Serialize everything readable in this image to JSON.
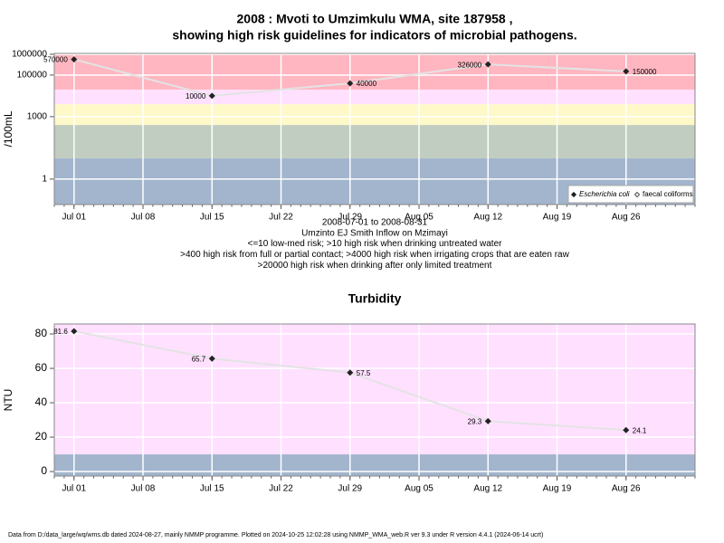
{
  "chart_data": [
    {
      "type": "line",
      "title": [
        "2008 : Mvoti to Umzimkulu WMA, site 187958 ,",
        "showing high risk guidelines for indicators of microbial pathogens."
      ],
      "ylabel": "/100mL",
      "log_y": true,
      "x": [
        "2008-07-01",
        "2008-07-15",
        "2008-07-29",
        "2008-08-12",
        "2008-08-26"
      ],
      "series": [
        {
          "name": "Escherichia coli",
          "color": "#222222",
          "marker": "filled-diamond",
          "values": [
            570000,
            10000,
            40000,
            326000,
            150000
          ]
        },
        {
          "name": "faecal coliforms",
          "color": "#222222",
          "marker": "open-diamond",
          "values": [
            null,
            null,
            null,
            null,
            null
          ]
        }
      ],
      "xlim": [
        "2008-06-29",
        "2008-09-02"
      ],
      "xticks": [
        {
          "value": "2008-07-01",
          "label": "Jul 01"
        },
        {
          "value": "2008-07-08",
          "label": "Jul 08"
        },
        {
          "value": "2008-07-15",
          "label": "Jul 15"
        },
        {
          "value": "2008-07-22",
          "label": "Jul 22"
        },
        {
          "value": "2008-07-29",
          "label": "Jul 29"
        },
        {
          "value": "2008-08-05",
          "label": "Aug 05"
        },
        {
          "value": "2008-08-12",
          "label": "Aug 12"
        },
        {
          "value": "2008-08-19",
          "label": "Aug 19"
        },
        {
          "value": "2008-08-26",
          "label": "Aug 26"
        }
      ],
      "ylim": [
        0.06,
        1100000
      ],
      "yticks": [
        1,
        1000,
        100000,
        1000000
      ],
      "thresholds": [
        10,
        400,
        4000,
        20000
      ],
      "band_colors": [
        "#a2b5cd",
        "#c1cdc1",
        "#fff8c8",
        "#ffe0ff",
        "#ffb6c1"
      ],
      "legend": "bottom-right",
      "grid": true,
      "notes": [
        "2008-07-01 to 2008-08-31",
        "Umzinto EJ Smith Inflow on Mzimayi",
        "<=10 low-med risk; >10 high risk when drinking untreated water",
        ">400 high risk from full or partial contact; >4000 high risk when irrigating crops that are eaten raw",
        ">20000 high risk when drinking after only limited treatment"
      ]
    },
    {
      "type": "line",
      "title": [
        "Turbidity"
      ],
      "ylabel": "NTU",
      "log_y": false,
      "x": [
        "2008-07-01",
        "2008-07-15",
        "2008-07-29",
        "2008-08-12",
        "2008-08-26"
      ],
      "series": [
        {
          "name": "Turbidity",
          "color": "#222222",
          "marker": "filled-diamond",
          "values": [
            81.6,
            65.7,
            57.5,
            29.3,
            24.1
          ]
        }
      ],
      "xlim": [
        "2008-06-29",
        "2008-09-02"
      ],
      "xticks": [
        {
          "value": "2008-07-01",
          "label": "Jul 01"
        },
        {
          "value": "2008-07-08",
          "label": "Jul 08"
        },
        {
          "value": "2008-07-15",
          "label": "Jul 15"
        },
        {
          "value": "2008-07-22",
          "label": "Jul 22"
        },
        {
          "value": "2008-07-29",
          "label": "Jul 29"
        },
        {
          "value": "2008-08-05",
          "label": "Aug 05"
        },
        {
          "value": "2008-08-12",
          "label": "Aug 12"
        },
        {
          "value": "2008-08-19",
          "label": "Aug 19"
        },
        {
          "value": "2008-08-26",
          "label": "Aug 26"
        }
      ],
      "ylim": [
        -2.6,
        85.8
      ],
      "yticks": [
        0,
        20,
        40,
        60,
        80
      ],
      "thresholds": [
        10
      ],
      "band_colors": [
        "#a2b5cd",
        "#ffe0ff"
      ],
      "grid": true
    }
  ],
  "footer": "Data from D:/data_large/wq/wms.db dated 2024-08-27, mainly NMMP programme. Plotted on 2024-10-25 12:02:28 using NMMP_WMA_web.R ver 9.3 under R version 4.4.1 (2024-06-14 ucrt)"
}
